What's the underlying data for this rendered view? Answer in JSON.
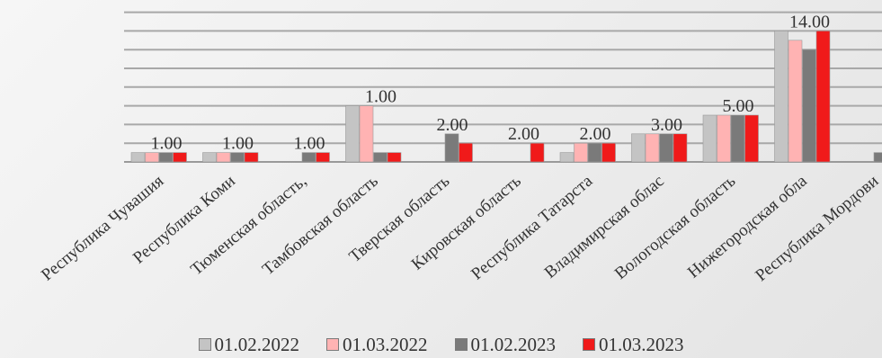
{
  "chart_data": {
    "type": "bar",
    "categories": [
      "Республика Чувашия",
      "Республика Коми",
      "Тюменская область,",
      "Тамбовская область",
      "Тверская область",
      "Кировская область",
      "Республика Татарста",
      "Владимирская облас",
      "Вологодская область",
      "Нижегородская обла",
      "Республика Мордови"
    ],
    "series": [
      {
        "name": "01.02.2022",
        "color": "#c4c4c4",
        "values": [
          1,
          1,
          null,
          6,
          null,
          null,
          1,
          3,
          5,
          14,
          null
        ]
      },
      {
        "name": "01.03.2022",
        "color": "#ffb3b3",
        "values": [
          1,
          1,
          null,
          6,
          null,
          null,
          2,
          3,
          5,
          13,
          null
        ]
      },
      {
        "name": "01.02.2023",
        "color": "#7a7a7a",
        "values": [
          1,
          1,
          1,
          1,
          3,
          null,
          2,
          3,
          5,
          12,
          1
        ]
      },
      {
        "name": "01.03.2023",
        "color": "#f01a1a",
        "values": [
          1,
          1,
          1,
          1,
          2,
          2,
          2,
          3,
          5,
          14,
          null
        ]
      }
    ],
    "data_labels": [
      {
        "category": 0,
        "text": "1.00"
      },
      {
        "category": 1,
        "text": "1.00"
      },
      {
        "category": 2,
        "text": "1.00"
      },
      {
        "category": 3,
        "text": "1.00"
      },
      {
        "category": 4,
        "text": "2.00"
      },
      {
        "category": 5,
        "text": "2.00"
      },
      {
        "category": 6,
        "text": "2.00"
      },
      {
        "category": 7,
        "text": "3.00"
      },
      {
        "category": 8,
        "text": "5.00"
      },
      {
        "category": 9,
        "text": "14.00"
      }
    ],
    "ylim": [
      0,
      16
    ],
    "grid": true,
    "legend_position": "bottom",
    "title": "",
    "xlabel": "",
    "ylabel": ""
  }
}
